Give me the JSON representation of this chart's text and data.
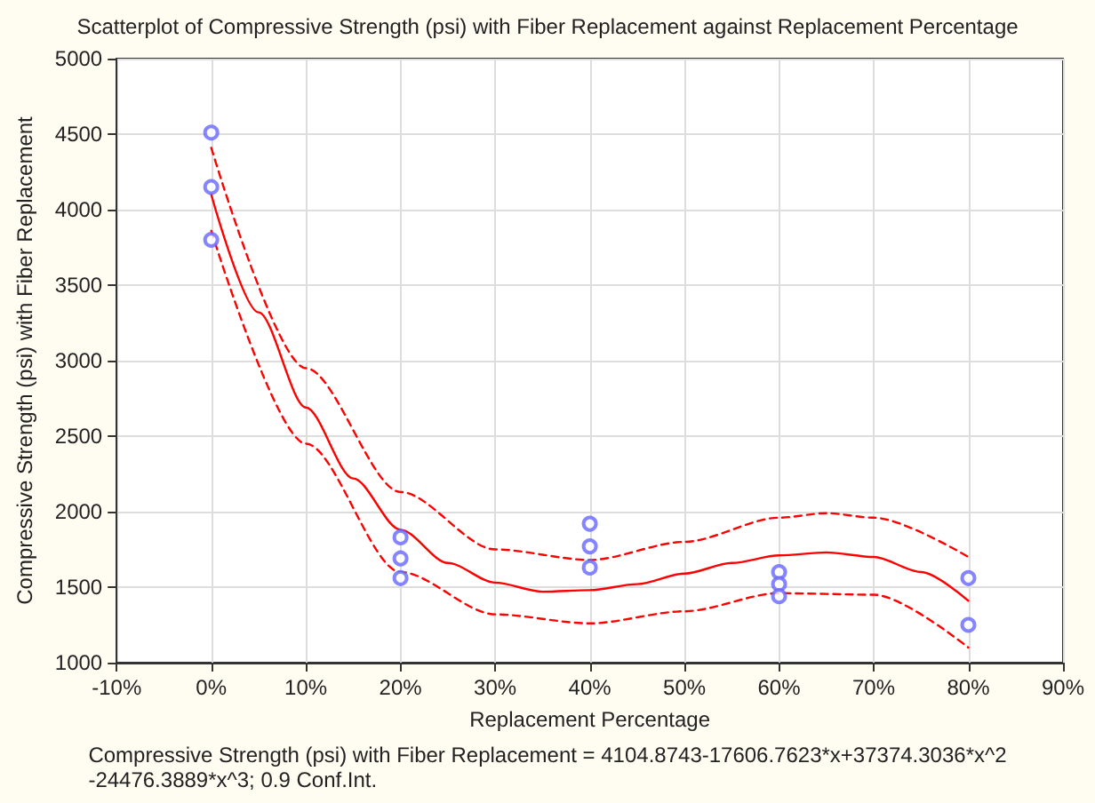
{
  "chart_data": {
    "type": "scatter",
    "title": "Scatterplot of Compressive Strength (psi) with Fiber Replacement against Replacement Percentage",
    "xlabel": "Replacement Percentage",
    "ylabel": "Compressive Strength (psi) with Fiber Replacement",
    "annotations": [
      "Compressive Strength (psi) with Fiber Replacement = 4104.8743-17606.7623*x+37374.3036*x^2\n-24476.3889*x^3; 0.9 Conf.Int."
    ],
    "series": [
      {
        "color": "#6666ff",
        "marker": "circle",
        "x": [
          0,
          0,
          0,
          20,
          20,
          20,
          40,
          40,
          40,
          60,
          60,
          60,
          80,
          80
        ],
        "values": [
          4510,
          4150,
          3800,
          1830,
          1690,
          1560,
          1920,
          1770,
          1630,
          1600,
          1520,
          1440,
          1560,
          1250
        ]
      },
      {
        "type": "line",
        "color": "#ff0000",
        "marker": "none",
        "line_style": "solid",
        "x": [
          0,
          5,
          10,
          15,
          20,
          25,
          30,
          35,
          40,
          45,
          50,
          55,
          60,
          65,
          70,
          75,
          80
        ],
        "values": [
          4100,
          3320,
          2690,
          2220,
          1880,
          1660,
          1530,
          1470,
          1480,
          1520,
          1590,
          1660,
          1710,
          1730,
          1700,
          1600,
          1410
        ]
      },
      {
        "type": "line",
        "color": "#ff0000",
        "marker": "none",
        "line_style": "dashed",
        "x": [
          0,
          10,
          20,
          30,
          40,
          50,
          60,
          65,
          70,
          80
        ],
        "values": [
          4410,
          2950,
          2130,
          1750,
          1680,
          1800,
          1960,
          1990,
          1960,
          1700
        ]
      },
      {
        "type": "line",
        "color": "#ff0000",
        "marker": "none",
        "line_style": "dashed",
        "x": [
          0,
          10,
          20,
          30,
          40,
          50,
          60,
          70,
          80
        ],
        "values": [
          3860,
          2450,
          1600,
          1320,
          1260,
          1340,
          1460,
          1450,
          1100
        ]
      }
    ],
    "xlim": [
      -10,
      90
    ],
    "xticks": [
      {
        "value": -10,
        "label": "-10%"
      },
      {
        "value": 0,
        "label": "0%"
      },
      {
        "value": 10,
        "label": "10%"
      },
      {
        "value": 20,
        "label": "20%"
      },
      {
        "value": 30,
        "label": "30%"
      },
      {
        "value": 40,
        "label": "40%"
      },
      {
        "value": 50,
        "label": "50%"
      },
      {
        "value": 60,
        "label": "60%"
      },
      {
        "value": 70,
        "label": "70%"
      },
      {
        "value": 80,
        "label": "80%"
      },
      {
        "value": 90,
        "label": "90%"
      }
    ],
    "ylim": [
      1000,
      5000
    ],
    "yticks": [
      1000,
      1500,
      2000,
      2500,
      3000,
      3500,
      4000,
      4500,
      5000
    ],
    "grid": true
  }
}
